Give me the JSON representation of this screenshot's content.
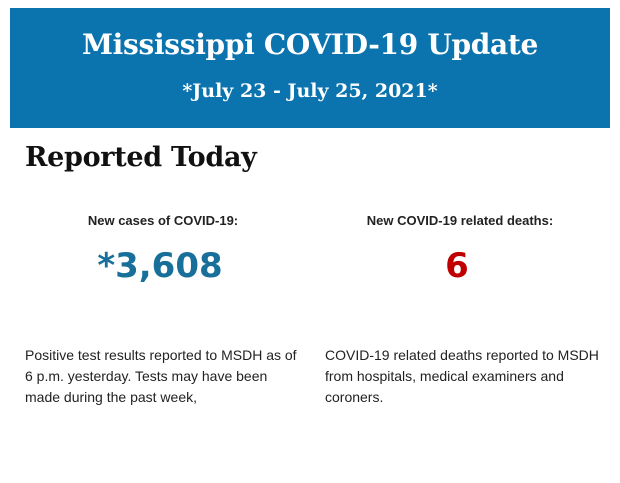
{
  "header": {
    "title": "Mississippi COVID-19 Update",
    "date_range": "*July 23 - July 25, 2021*"
  },
  "section_title": "Reported Today",
  "cases": {
    "label": "New cases of COVID-19:",
    "value": "*3,608",
    "description": "Positive test results reported to MSDH as of 6 p.m. yesterday. Tests may have been made during the past week,"
  },
  "deaths": {
    "label": "New COVID-19 related deaths:",
    "value": "6",
    "description": "COVID-19 related deaths reported to MSDH from hospitals, medical examiners and coroners."
  },
  "colors": {
    "banner": "#0b73ad",
    "cases_value": "#176f9a",
    "deaths_value": "#c00000"
  }
}
